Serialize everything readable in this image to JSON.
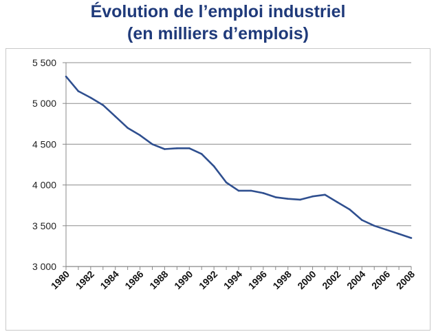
{
  "chart_data": {
    "type": "line",
    "title_line1": "Évolution de l’emploi industriel",
    "title_line2": "(en milliers d’emplois)",
    "xlabel": "",
    "ylabel": "",
    "ylim": [
      3000,
      5500
    ],
    "yticks": [
      3000,
      3500,
      4000,
      4500,
      5000,
      5500
    ],
    "ytick_labels": [
      "3 000",
      "3 500",
      "4 000",
      "4 500",
      "5 000",
      "5 500"
    ],
    "xticks": [
      "1980",
      "1982",
      "1984",
      "1986",
      "1988",
      "1990",
      "1992",
      "1994",
      "1996",
      "1998",
      "2000",
      "2002",
      "2004",
      "2006",
      "2008"
    ],
    "grid": true,
    "line_color": "#2f4f8f",
    "x": [
      1980,
      1981,
      1982,
      1983,
      1984,
      1985,
      1986,
      1987,
      1988,
      1989,
      1990,
      1991,
      1992,
      1993,
      1994,
      1995,
      1996,
      1997,
      1998,
      1999,
      2000,
      2001,
      2002,
      2003,
      2004,
      2005,
      2006,
      2007,
      2008
    ],
    "values": [
      5330,
      5150,
      5070,
      4980,
      4840,
      4700,
      4610,
      4500,
      4440,
      4450,
      4450,
      4380,
      4230,
      4030,
      3930,
      3930,
      3900,
      3850,
      3830,
      3820,
      3860,
      3880,
      3790,
      3700,
      3570,
      3500,
      3450,
      3400,
      3350
    ]
  }
}
